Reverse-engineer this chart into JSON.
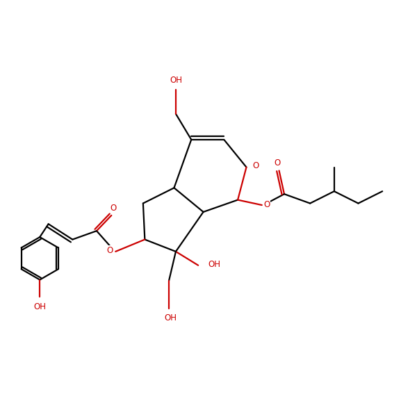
{
  "bg_color": "#ffffff",
  "bond_color": "#000000",
  "oxygen_color": "#cc0000",
  "line_width": 1.6,
  "font_size": 8.5,
  "fig_size": [
    6.0,
    6.0
  ],
  "dpi": 100,
  "xlim": [
    0,
    12
  ],
  "ylim": [
    0,
    12
  ]
}
